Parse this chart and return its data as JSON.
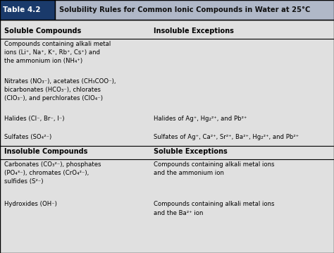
{
  "title_box_color": "#1a3a6b",
  "title_box_text": "Table 4.2",
  "title_text": "Solubility Rules for Common Ionic Compounds in Water at 25°C",
  "bg_color": "#d0d0d0",
  "table_bg": "#e0e0e0",
  "header_bar_color": "#b0b8c8",
  "header1_soluble": "Soluble Compounds",
  "header1_insoluble_exc": "Insoluble Exceptions",
  "header2_insoluble": "Insoluble Compounds",
  "header2_soluble_exc": "Soluble Exceptions",
  "col_split": 0.44,
  "soluble_rows": [
    {
      "left": "Compounds containing alkali metal\nions (Li⁺, Na⁺, K⁺, Rb⁺, Cs⁺) and\nthe ammonium ion (NH₄⁺)",
      "right": ""
    },
    {
      "left": "Nitrates (NO₃⁻), acetates (CH₃COO⁻),\nbicarbonates (HCO₃⁻), chlorates\n(ClO₃⁻), and perchlorates (ClO₄⁻)",
      "right": ""
    },
    {
      "left": "Halides (Cl⁻, Br⁻, I⁻)",
      "right": "Halides of Ag⁺, Hg₂²⁺, and Pb²⁺"
    },
    {
      "left": "Sulfates (SO₄²⁻)",
      "right": "Sulfates of Ag⁺, Ca²⁺, Sr²⁺, Ba²⁺, Hg₂²⁺, and Pb²⁺"
    }
  ],
  "insoluble_rows": [
    {
      "left": "Carbonates (CO₃²⁻), phosphates\n(PO₄³⁻), chromates (CrO₄²⁻),\nsulfides (S²⁻)",
      "right": "Compounds containing alkali metal ions\nand the ammonium ion"
    },
    {
      "left": "Hydroxides (OH⁻)",
      "right": "Compounds containing alkali metal ions\nand the Ba²⁺ ion"
    }
  ]
}
